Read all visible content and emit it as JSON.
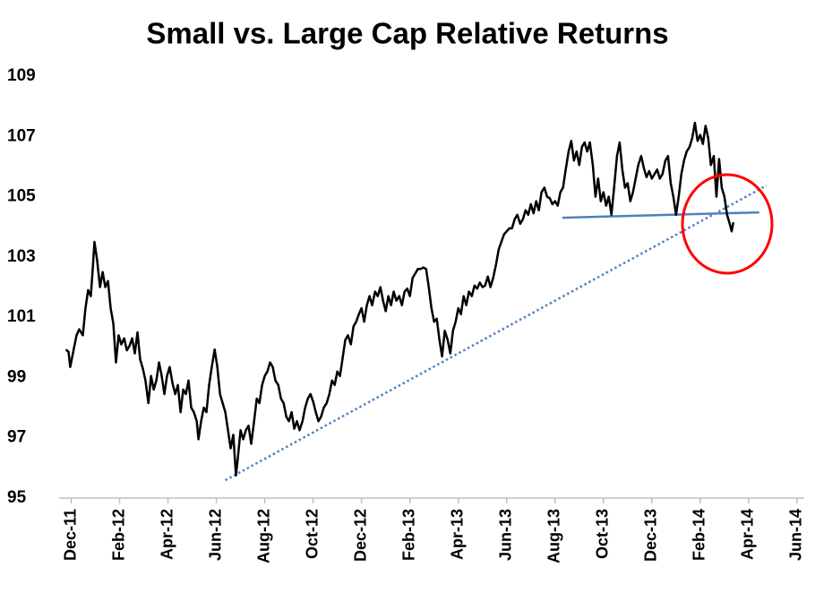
{
  "chart_data": {
    "type": "line",
    "title": "Small vs. Large Cap Relative Returns",
    "color": "#000000",
    "x": [
      -0.22,
      -0.11,
      -0.04,
      0.07,
      0.22,
      0.33,
      0.48,
      0.59,
      0.7,
      0.81,
      0.89,
      0.96,
      1.07,
      1.19,
      1.3,
      1.41,
      1.52,
      1.63,
      1.74,
      1.85,
      1.96,
      2.07,
      2.19,
      2.3,
      2.41,
      2.52,
      2.63,
      2.74,
      2.85,
      2.96,
      3.07,
      3.19,
      3.3,
      3.41,
      3.52,
      3.63,
      3.74,
      3.85,
      3.96,
      4.07,
      4.19,
      4.3,
      4.41,
      4.52,
      4.63,
      4.74,
      4.85,
      4.96,
      5.07,
      5.19,
      5.26,
      5.37,
      5.48,
      5.59,
      5.7,
      5.81,
      5.93,
      6.04,
      6.15,
      6.26,
      6.37,
      6.48,
      6.59,
      6.7,
      6.81,
      6.89,
      7.0,
      7.11,
      7.22,
      7.33,
      7.44,
      7.56,
      7.67,
      7.78,
      7.89,
      8.0,
      8.11,
      8.22,
      8.33,
      8.44,
      8.56,
      8.67,
      8.78,
      8.89,
      9.0,
      9.11,
      9.22,
      9.33,
      9.44,
      9.56,
      9.67,
      9.78,
      9.89,
      10.0,
      10.11,
      10.22,
      10.33,
      10.44,
      10.56,
      10.67,
      10.78,
      10.89,
      11.0,
      11.11,
      11.22,
      11.33,
      11.44,
      11.56,
      11.67,
      11.78,
      11.89,
      12.0,
      12.11,
      12.22,
      12.33,
      12.44,
      12.56,
      12.67,
      12.78,
      12.89,
      13.0,
      13.11,
      13.22,
      13.33,
      13.44,
      13.56,
      13.67,
      13.78,
      13.89,
      14.0,
      14.11,
      14.22,
      14.33,
      14.44,
      14.56,
      14.67,
      14.78,
      14.89,
      15.0,
      15.11,
      15.22,
      15.33,
      15.44,
      15.56,
      15.67,
      15.78,
      15.89,
      16.0,
      16.11,
      16.22,
      16.33,
      16.44,
      16.56,
      16.67,
      16.78,
      16.89,
      17.0,
      17.11,
      17.22,
      17.33,
      17.44,
      17.56,
      17.67,
      17.78,
      17.89,
      18.0,
      18.11,
      18.22,
      18.33,
      18.44,
      18.56,
      18.67,
      18.78,
      18.89,
      19.0,
      19.11,
      19.22,
      19.33,
      19.44,
      19.56,
      19.67,
      19.78,
      19.89,
      20.0,
      20.11,
      20.22,
      20.33,
      20.44,
      20.56,
      20.67,
      20.78,
      20.89,
      21.0,
      21.11,
      21.22,
      21.33,
      21.44,
      21.56,
      21.67,
      21.78,
      21.89,
      22.0,
      22.11,
      22.22,
      22.33,
      22.44,
      22.56,
      22.67,
      22.78,
      22.89,
      23.0,
      23.11,
      23.22,
      23.33,
      23.44,
      23.56,
      23.67,
      23.78,
      23.89,
      24.0,
      24.11,
      24.22,
      24.33,
      24.44,
      24.56,
      24.67,
      24.78,
      24.89,
      25.0,
      25.11,
      25.22,
      25.33,
      25.44,
      25.56,
      25.67,
      25.78,
      25.89,
      26.0,
      26.11,
      26.22,
      26.33,
      26.44,
      26.56,
      26.67,
      26.78,
      26.89,
      27.0,
      27.11,
      27.22,
      27.3,
      27.37
    ],
    "values": [
      99.93,
      99.85,
      99.35,
      99.8,
      100.4,
      100.6,
      100.4,
      101.3,
      101.9,
      101.7,
      102.6,
      103.5,
      102.9,
      102.0,
      102.5,
      102.0,
      102.2,
      101.3,
      100.8,
      99.5,
      100.4,
      100.1,
      100.3,
      99.9,
      100.05,
      100.3,
      99.8,
      100.5,
      99.6,
      99.3,
      98.9,
      98.15,
      99.05,
      98.6,
      98.9,
      99.5,
      99.05,
      98.45,
      99.05,
      99.35,
      98.8,
      98.45,
      98.75,
      97.85,
      98.6,
      98.45,
      98.9,
      98.0,
      97.85,
      97.55,
      96.95,
      97.55,
      98.0,
      97.85,
      98.75,
      99.35,
      99.93,
      99.35,
      98.45,
      98.15,
      97.85,
      97.25,
      96.65,
      97.1,
      95.75,
      96.35,
      97.25,
      96.95,
      97.25,
      97.4,
      96.8,
      97.55,
      98.3,
      98.15,
      98.75,
      99.05,
      99.2,
      99.5,
      99.35,
      98.9,
      98.75,
      98.3,
      98.15,
      97.7,
      97.55,
      97.85,
      97.3,
      97.55,
      97.25,
      97.55,
      98.0,
      98.3,
      98.45,
      98.2,
      97.85,
      97.55,
      97.7,
      98.0,
      98.15,
      98.45,
      98.9,
      98.75,
      99.2,
      99.05,
      99.65,
      100.25,
      100.4,
      100.1,
      100.7,
      100.85,
      101.1,
      101.3,
      100.85,
      101.4,
      101.7,
      101.4,
      101.85,
      101.7,
      102.0,
      101.55,
      101.2,
      101.7,
      101.4,
      101.85,
      101.55,
      101.7,
      101.4,
      101.85,
      101.95,
      101.7,
      102.3,
      102.45,
      102.6,
      102.6,
      102.65,
      102.6,
      102.0,
      101.3,
      100.85,
      100.95,
      100.25,
      99.7,
      100.55,
      100.25,
      99.8,
      100.55,
      100.85,
      101.3,
      101.1,
      101.7,
      101.4,
      101.85,
      101.7,
      102.05,
      101.95,
      102.15,
      102.0,
      102.05,
      102.35,
      102.0,
      102.3,
      102.75,
      103.25,
      103.5,
      103.75,
      103.85,
      103.95,
      103.95,
      104.25,
      104.4,
      104.1,
      104.25,
      104.55,
      104.4,
      104.75,
      104.45,
      104.85,
      104.55,
      105.15,
      105.3,
      105.0,
      104.95,
      104.75,
      104.85,
      104.7,
      105.15,
      105.3,
      105.9,
      106.5,
      106.85,
      106.2,
      106.5,
      106.05,
      106.65,
      106.8,
      106.5,
      106.8,
      106.05,
      105.0,
      105.6,
      104.85,
      105.15,
      104.7,
      105.0,
      104.4,
      105.3,
      106.35,
      106.8,
      105.9,
      105.3,
      105.45,
      104.85,
      105.15,
      105.6,
      106.05,
      106.35,
      105.95,
      105.65,
      105.85,
      105.6,
      105.75,
      105.9,
      105.6,
      105.75,
      106.2,
      106.35,
      105.45,
      105.0,
      104.4,
      105.0,
      105.75,
      106.2,
      106.5,
      106.65,
      106.95,
      107.45,
      106.85,
      107.05,
      106.75,
      107.35,
      106.95,
      106.05,
      106.35,
      105.0,
      106.25,
      105.3,
      105.0,
      104.4,
      104.1,
      103.85,
      104.15
    ],
    "xlim": [
      -0.5,
      30.3
    ],
    "xticks": [
      {
        "value": 0,
        "label": "Dec-11"
      },
      {
        "value": 2,
        "label": "Feb-12"
      },
      {
        "value": 4,
        "label": "Apr-12"
      },
      {
        "value": 6,
        "label": "Jun-12"
      },
      {
        "value": 8,
        "label": "Aug-12"
      },
      {
        "value": 10,
        "label": "Oct-12"
      },
      {
        "value": 12,
        "label": "Dec-12"
      },
      {
        "value": 14,
        "label": "Feb-13"
      },
      {
        "value": 16,
        "label": "Apr-13"
      },
      {
        "value": 18,
        "label": "Jun-13"
      },
      {
        "value": 20,
        "label": "Aug-13"
      },
      {
        "value": 22,
        "label": "Oct-13"
      },
      {
        "value": 24,
        "label": "Dec-13"
      },
      {
        "value": 26,
        "label": "Feb-14"
      },
      {
        "value": 28,
        "label": "Apr-14"
      },
      {
        "value": 30,
        "label": "Jun-14"
      }
    ],
    "ylim": [
      95,
      109
    ],
    "yticks": [
      95,
      97,
      99,
      101,
      103,
      105,
      107,
      109
    ],
    "grid": false,
    "trendlines": [
      {
        "x": [
          6.37,
          28.74
        ],
        "y": [
          95.59,
          105.37
        ],
        "color": "#4f81bd",
        "style": "dotted"
      },
      {
        "x": [
          20.3,
          28.44
        ],
        "y": [
          104.3,
          104.48
        ],
        "color": "#4f81bd",
        "style": "solid"
      }
    ]
  }
}
